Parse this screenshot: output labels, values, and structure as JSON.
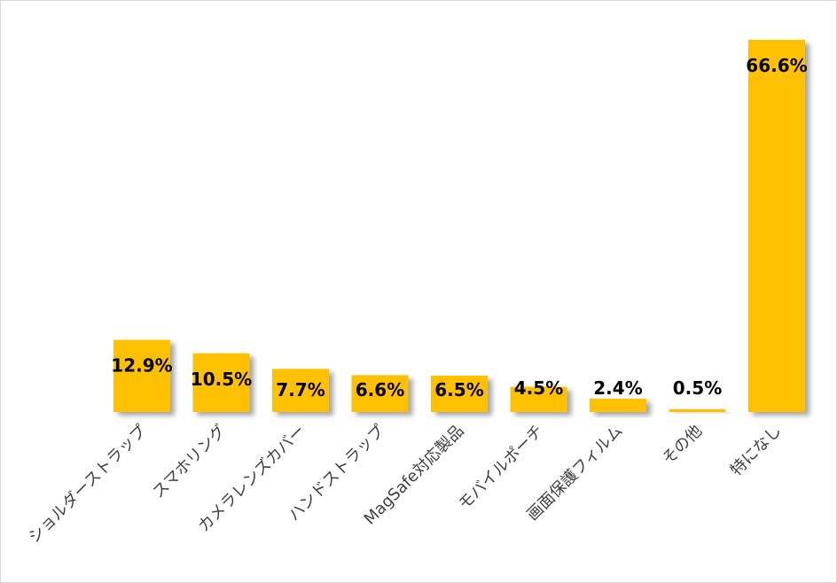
{
  "chart_data": {
    "type": "bar",
    "title": "",
    "xlabel": "",
    "ylabel": "",
    "categories": [
      "ショルダーストラップ",
      "スマホリング",
      "カメラレンズカバー",
      "ハンドストラップ",
      "MagSafe対応製品",
      "モバイルポーチ",
      "画面保護フィルム",
      "その他",
      "特になし"
    ],
    "values": [
      12.9,
      10.5,
      7.7,
      6.6,
      6.5,
      4.5,
      2.4,
      0.5,
      66.6
    ],
    "data_labels": [
      "12.9%",
      "10.5%",
      "7.7%",
      "6.6%",
      "6.5%",
      "4.5%",
      "2.4%",
      "0.5%",
      "66.6%"
    ],
    "ylim": [
      0,
      70
    ],
    "grid": false,
    "legend": "none",
    "colors": {
      "bar": "#FFC000",
      "shadow": "#bfbfbf",
      "label": "#000000",
      "category_text": "#404040"
    }
  }
}
